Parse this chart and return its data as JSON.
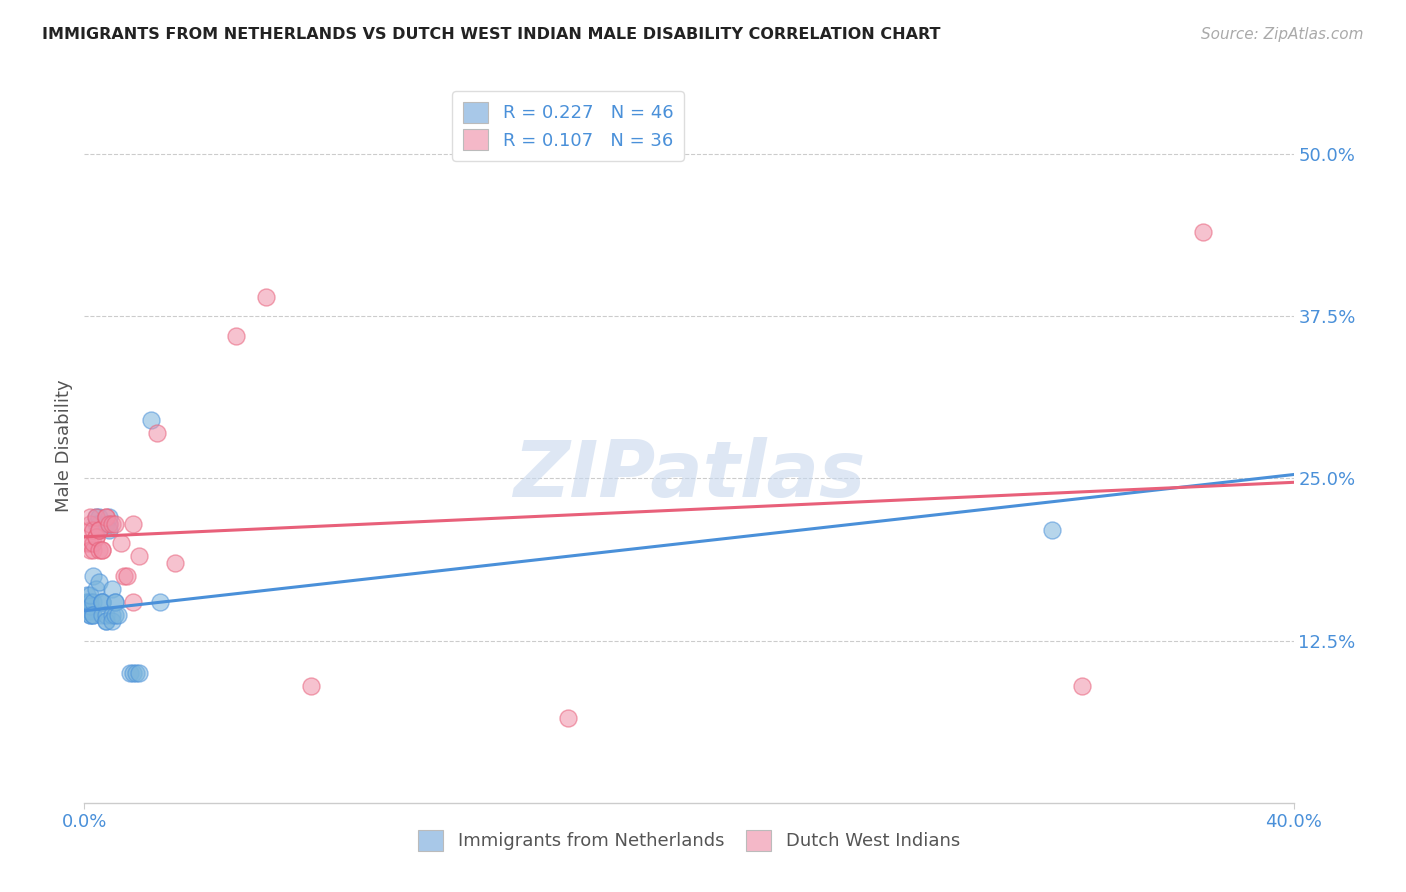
{
  "title": "IMMIGRANTS FROM NETHERLANDS VS DUTCH WEST INDIAN MALE DISABILITY CORRELATION CHART",
  "source": "Source: ZipAtlas.com",
  "ylabel": "Male Disability",
  "yticks_labels": [
    "50.0%",
    "37.5%",
    "25.0%",
    "12.5%"
  ],
  "ytick_vals": [
    0.5,
    0.375,
    0.25,
    0.125
  ],
  "xtick_labels": [
    "0.0%",
    "40.0%"
  ],
  "xtick_vals": [
    0.0,
    0.4
  ],
  "xlim": [
    0.0,
    0.4
  ],
  "ylim": [
    0.0,
    0.55
  ],
  "legend1_label": "R = 0.227   N = 46",
  "legend2_label": "R = 0.107   N = 36",
  "legend1_patch_color": "#a8c8e8",
  "legend2_patch_color": "#f4b8c8",
  "scatter1_color": "#7ab4dc",
  "scatter2_color": "#f090a8",
  "line1_color": "#4a90d9",
  "line2_color": "#e8607a",
  "watermark": "ZIPatlas",
  "bottom_legend1": "Immigrants from Netherlands",
  "bottom_legend2": "Dutch West Indians",
  "blue_points": [
    [
      0.001,
      0.155
    ],
    [
      0.001,
      0.148
    ],
    [
      0.001,
      0.155
    ],
    [
      0.001,
      0.16
    ],
    [
      0.002,
      0.148
    ],
    [
      0.002,
      0.155
    ],
    [
      0.002,
      0.145
    ],
    [
      0.002,
      0.152
    ],
    [
      0.002,
      0.145
    ],
    [
      0.002,
      0.16
    ],
    [
      0.003,
      0.155
    ],
    [
      0.003,
      0.145
    ],
    [
      0.003,
      0.175
    ],
    [
      0.003,
      0.145
    ],
    [
      0.004,
      0.165
    ],
    [
      0.004,
      0.22
    ],
    [
      0.004,
      0.215
    ],
    [
      0.005,
      0.21
    ],
    [
      0.005,
      0.215
    ],
    [
      0.005,
      0.22
    ],
    [
      0.005,
      0.17
    ],
    [
      0.006,
      0.155
    ],
    [
      0.006,
      0.145
    ],
    [
      0.006,
      0.155
    ],
    [
      0.006,
      0.155
    ],
    [
      0.007,
      0.14
    ],
    [
      0.007,
      0.145
    ],
    [
      0.007,
      0.14
    ],
    [
      0.007,
      0.215
    ],
    [
      0.008,
      0.215
    ],
    [
      0.008,
      0.22
    ],
    [
      0.008,
      0.21
    ],
    [
      0.009,
      0.165
    ],
    [
      0.009,
      0.145
    ],
    [
      0.009,
      0.14
    ],
    [
      0.01,
      0.155
    ],
    [
      0.01,
      0.145
    ],
    [
      0.01,
      0.155
    ],
    [
      0.011,
      0.145
    ],
    [
      0.015,
      0.1
    ],
    [
      0.016,
      0.1
    ],
    [
      0.017,
      0.1
    ],
    [
      0.018,
      0.1
    ],
    [
      0.022,
      0.295
    ],
    [
      0.025,
      0.155
    ],
    [
      0.32,
      0.21
    ]
  ],
  "pink_points": [
    [
      0.001,
      0.2
    ],
    [
      0.002,
      0.21
    ],
    [
      0.002,
      0.215
    ],
    [
      0.002,
      0.22
    ],
    [
      0.002,
      0.2
    ],
    [
      0.002,
      0.195
    ],
    [
      0.003,
      0.195
    ],
    [
      0.003,
      0.2
    ],
    [
      0.003,
      0.21
    ],
    [
      0.004,
      0.205
    ],
    [
      0.004,
      0.205
    ],
    [
      0.004,
      0.22
    ],
    [
      0.005,
      0.21
    ],
    [
      0.005,
      0.21
    ],
    [
      0.005,
      0.195
    ],
    [
      0.006,
      0.195
    ],
    [
      0.006,
      0.195
    ],
    [
      0.007,
      0.22
    ],
    [
      0.007,
      0.22
    ],
    [
      0.008,
      0.215
    ],
    [
      0.009,
      0.215
    ],
    [
      0.01,
      0.215
    ],
    [
      0.012,
      0.2
    ],
    [
      0.013,
      0.175
    ],
    [
      0.014,
      0.175
    ],
    [
      0.016,
      0.215
    ],
    [
      0.016,
      0.155
    ],
    [
      0.018,
      0.19
    ],
    [
      0.024,
      0.285
    ],
    [
      0.03,
      0.185
    ],
    [
      0.05,
      0.36
    ],
    [
      0.06,
      0.39
    ],
    [
      0.075,
      0.09
    ],
    [
      0.16,
      0.065
    ],
    [
      0.33,
      0.09
    ],
    [
      0.37,
      0.44
    ]
  ]
}
